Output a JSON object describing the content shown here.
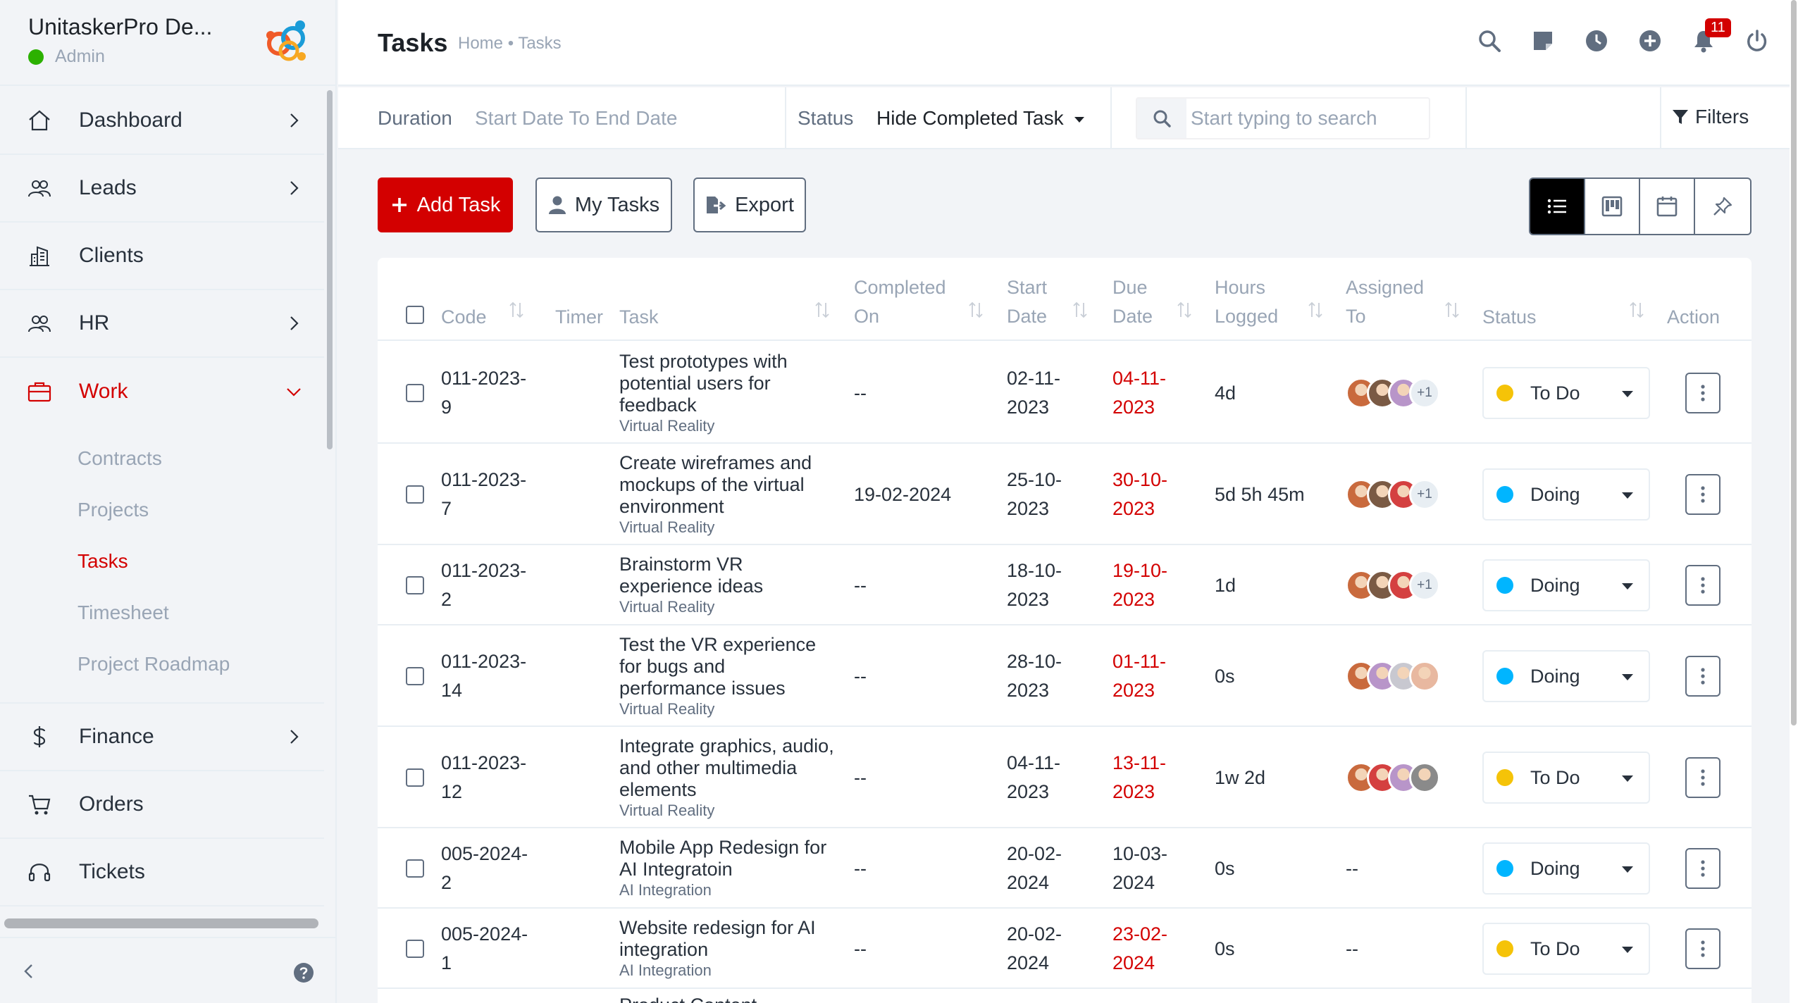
{
  "brand": {
    "name": "UnitaskerPro De...",
    "role": "Admin"
  },
  "sidebar": {
    "items": [
      {
        "label": "Dashboard",
        "icon": "home-icon",
        "has_chevron": true
      },
      {
        "label": "Leads",
        "icon": "users-icon",
        "has_chevron": true
      },
      {
        "label": "Clients",
        "icon": "building-icon",
        "has_chevron": false
      },
      {
        "label": "HR",
        "icon": "users-icon",
        "has_chevron": true
      },
      {
        "label": "Work",
        "icon": "briefcase-icon",
        "has_chevron": true,
        "active": true
      },
      {
        "label": "Finance",
        "icon": "dollar-icon",
        "has_chevron": true
      },
      {
        "label": "Orders",
        "icon": "cart-icon",
        "has_chevron": false
      },
      {
        "label": "Tickets",
        "icon": "headset-icon",
        "has_chevron": false
      }
    ],
    "work_sub": [
      "Contracts",
      "Projects",
      "Tasks",
      "Timesheet",
      "Project Roadmap"
    ],
    "active_sub": "Tasks"
  },
  "header": {
    "title": "Tasks",
    "breadcrumb": "Home • Tasks",
    "notification_count": "11"
  },
  "filterbar": {
    "duration_label": "Duration",
    "duration_value": "Start Date To End Date",
    "status_label": "Status",
    "status_value": "Hide Completed Task",
    "search_placeholder": "Start typing to search",
    "filters_label": "Filters"
  },
  "actions": {
    "add_task": "Add Task",
    "my_tasks": "My Tasks",
    "export": "Export"
  },
  "table": {
    "columns": {
      "code": "Code",
      "timer": "Timer",
      "task": "Task",
      "completed_on_1": "Completed",
      "completed_on_2": "On",
      "start_date_1": "Start",
      "start_date_2": "Date",
      "due_date_1": "Due",
      "due_date_2": "Date",
      "hours_1": "Hours",
      "hours_2": "Logged",
      "assigned_1": "Assigned",
      "assigned_2": "To",
      "status": "Status",
      "action": "Action"
    },
    "rows": [
      {
        "code_1": "011-2023-",
        "code_2": "9",
        "title": [
          "Test prototypes with",
          "potential users for",
          "feedback"
        ],
        "project": "Virtual Reality",
        "completed": "--",
        "start_1": "02-11-",
        "start_2": "2023",
        "due_1": "04-11-",
        "due_2": "2023",
        "due_overdue": true,
        "hours": "4d",
        "avatars": 3,
        "more": "+1",
        "status": "To Do",
        "status_color": "#f5c308"
      },
      {
        "code_1": "011-2023-",
        "code_2": "7",
        "title": [
          "Create wireframes and",
          "mockups of the virtual",
          "environment"
        ],
        "project": "Virtual Reality",
        "completed": "19-02-2024",
        "start_1": "25-10-",
        "start_2": "2023",
        "due_1": "30-10-",
        "due_2": "2023",
        "due_overdue": true,
        "hours": "5d 5h 45m",
        "avatars": 3,
        "more": "+1",
        "status": "Doing",
        "status_color": "#00b5ff"
      },
      {
        "code_1": "011-2023-",
        "code_2": "2",
        "title": [
          "Brainstorm VR",
          "experience ideas"
        ],
        "project": "Virtual Reality",
        "completed": "--",
        "start_1": "18-10-",
        "start_2": "2023",
        "due_1": "19-10-",
        "due_2": "2023",
        "due_overdue": true,
        "hours": "1d",
        "avatars": 3,
        "more": "+1",
        "status": "Doing",
        "status_color": "#00b5ff"
      },
      {
        "code_1": "011-2023-",
        "code_2": "14",
        "title": [
          "Test the VR experience",
          "for bugs and",
          "performance issues"
        ],
        "project": "Virtual Reality",
        "completed": "--",
        "start_1": "28-10-",
        "start_2": "2023",
        "due_1": "01-11-",
        "due_2": "2023",
        "due_overdue": true,
        "hours": "0s",
        "avatars": 4,
        "more": "",
        "status": "Doing",
        "status_color": "#00b5ff"
      },
      {
        "code_1": "011-2023-",
        "code_2": "12",
        "title": [
          "Integrate graphics, audio,",
          "and other multimedia",
          "elements"
        ],
        "project": "Virtual Reality",
        "completed": "--",
        "start_1": "04-11-",
        "start_2": "2023",
        "due_1": "13-11-",
        "due_2": "2023",
        "due_overdue": true,
        "hours": "1w 2d",
        "avatars": 4,
        "more": "",
        "status": "To Do",
        "status_color": "#f5c308"
      },
      {
        "code_1": "005-2024-",
        "code_2": "2",
        "title": [
          "Mobile App Redesign for",
          "AI Integratoin"
        ],
        "project": "AI Integration",
        "completed": "--",
        "start_1": "20-02-",
        "start_2": "2024",
        "due_1": "10-03-",
        "due_2": "2024",
        "due_overdue": false,
        "hours": "0s",
        "avatars": 0,
        "more": "",
        "assigned_text": "--",
        "status": "Doing",
        "status_color": "#00b5ff"
      },
      {
        "code_1": "005-2024-",
        "code_2": "1",
        "title": [
          "Website redesign for AI",
          "integration"
        ],
        "project": "AI Integration",
        "completed": "--",
        "start_1": "20-02-",
        "start_2": "2024",
        "due_1": "23-02-",
        "due_2": "2024",
        "due_overdue": true,
        "hours": "0s",
        "avatars": 0,
        "more": "",
        "assigned_text": "--",
        "status": "To Do",
        "status_color": "#f5c308"
      },
      {
        "code_1": "",
        "code_2": "",
        "title": [
          "Product Content"
        ],
        "project": "",
        "completed": "",
        "start_1": "",
        "start_2": "",
        "due_1": "",
        "due_2": "",
        "due_overdue": false,
        "hours": "",
        "avatars": 0,
        "more": "",
        "status": "",
        "status_color": ""
      }
    ]
  },
  "colors": {
    "accent": "#d30000",
    "todo": "#f5c308",
    "doing": "#00b5ff"
  }
}
